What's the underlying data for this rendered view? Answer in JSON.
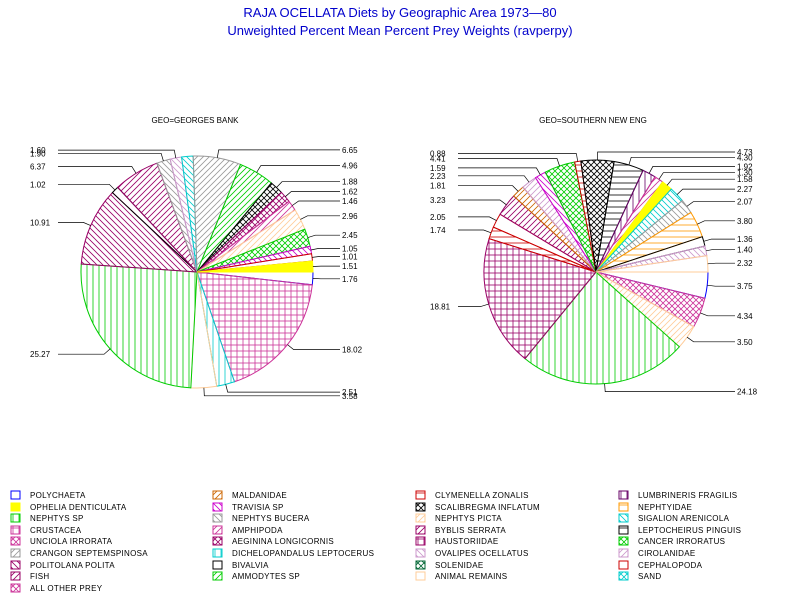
{
  "title": "RAJA OCELLATA Diets by Geographic Area 1973—80",
  "subtitle": "Unweighted Percent Mean Percent Prey  Weights (ravperpy)",
  "chart_data": {
    "type": "pie",
    "categories": [
      {
        "name": "POLYCHAETA",
        "color": "#0000ff",
        "pattern": "empty"
      },
      {
        "name": "OPHELIA DENTICULATA",
        "color": "#ffff00",
        "pattern": "solid"
      },
      {
        "name": "NEPHTYS SP",
        "color": "#00cc00",
        "pattern": "vline"
      },
      {
        "name": "CRUSTACEA",
        "color": "#cc3399",
        "pattern": "cross"
      },
      {
        "name": "UNCIOLA IRRORATA",
        "color": "#cc3399",
        "pattern": "xcross"
      },
      {
        "name": "CRANGON SEPTEMSPINOSA",
        "color": "#999999",
        "pattern": "ldiag"
      },
      {
        "name": "POLITOLANA POLITA",
        "color": "#990066",
        "pattern": "rdiag"
      },
      {
        "name": "FISH",
        "color": "#990066",
        "pattern": "ldiag"
      },
      {
        "name": "ALL OTHER PREY",
        "color": "#cc3399",
        "pattern": "xdiag"
      },
      {
        "name": "MALDANIDAE",
        "color": "#cc6600",
        "pattern": "ldiag"
      },
      {
        "name": "TRAVISIA SP",
        "color": "#cc00cc",
        "pattern": "rdiag"
      },
      {
        "name": "NEPHTYS BUCERA",
        "color": "#999999",
        "pattern": "rdiag"
      },
      {
        "name": "AMPHIPODA",
        "color": "#cc3399",
        "pattern": "ldiag"
      },
      {
        "name": "AEGININA LONGICORNIS",
        "color": "#990066",
        "pattern": "xdiag"
      },
      {
        "name": "DICHELOPANDALUS LEPTOCERUS",
        "color": "#00cccc",
        "pattern": "vline"
      },
      {
        "name": "BIVALVIA",
        "color": "#000000",
        "pattern": "empty"
      },
      {
        "name": "AMMODYTES SP",
        "color": "#00cc00",
        "pattern": "ldiag"
      },
      {
        "name": "CLYMENELLA ZONALIS",
        "color": "#cc0000",
        "pattern": "hline"
      },
      {
        "name": "SCALIBREGMA INFLATUM",
        "color": "#000000",
        "pattern": "xdiag"
      },
      {
        "name": "NEPHTYS PICTA",
        "color": "#ffcc99",
        "pattern": "ldiag"
      },
      {
        "name": "BYBLIS SERRATA",
        "color": "#990066",
        "pattern": "ldiag"
      },
      {
        "name": "HAUSTORIIDAE",
        "color": "#990066",
        "pattern": "cross"
      },
      {
        "name": "OVALIPES OCELLATUS",
        "color": "#cc99cc",
        "pattern": "rdiag"
      },
      {
        "name": "SOLENIDAE",
        "color": "#006633",
        "pattern": "xcross"
      },
      {
        "name": "ANIMAL REMAINS",
        "color": "#ffcc99",
        "pattern": "empty"
      },
      {
        "name": "LUMBRINERIS FRAGILIS",
        "color": "#660066",
        "pattern": "vline"
      },
      {
        "name": "NEPHTYIDAE",
        "color": "#ff9900",
        "pattern": "hline"
      },
      {
        "name": "SIGALION ARENICOLA",
        "color": "#00cccc",
        "pattern": "rdiag"
      },
      {
        "name": "LEPTOCHEIRUS PINGUIS",
        "color": "#000000",
        "pattern": "hline"
      },
      {
        "name": "CANCER IRRORATUS",
        "color": "#00cc00",
        "pattern": "xdiag"
      },
      {
        "name": "CIROLANIDAE",
        "color": "#cc99cc",
        "pattern": "ldiag"
      },
      {
        "name": "CEPHALOPODA",
        "color": "#cc0000",
        "pattern": "empty"
      },
      {
        "name": "SAND",
        "color": "#00cccc",
        "pattern": "xcross"
      }
    ],
    "pies": [
      {
        "title": "GEO=GEORGES BANK",
        "slices": [
          {
            "category": "POLYCHAETA",
            "value": 1.76,
            "label": "1.76"
          },
          {
            "category": "CRUSTACEA",
            "value": 18.02,
            "label": "18.02"
          },
          {
            "category": "DICHELOPANDALUS LEPTOCERUS",
            "value": 2.51,
            "label": "2.51"
          },
          {
            "category": "ANIMAL REMAINS",
            "value": 3.58,
            "label": "3.58"
          },
          {
            "category": "NEPHTYS SP",
            "value": 25.27,
            "label": "25.27"
          },
          {
            "category": "POLITOLANA POLITA",
            "value": 10.91,
            "label": "10.91"
          },
          {
            "category": "BIVALVIA",
            "value": 1.02,
            "label": "1.02"
          },
          {
            "category": "FISH",
            "value": 6.37,
            "label": "6.37"
          },
          {
            "category": "NEPHTYS BUCERA",
            "value": 1.9,
            "label": "1.90"
          },
          {
            "category": "OVALIPES OCELLATUS",
            "value": 1.6,
            "label": "1.60"
          },
          {
            "category": "SIGALION ARENICOLA",
            "value": 1.6,
            "label": ""
          },
          {
            "category": "CRANGON SEPTEMSPINOSA",
            "value": 6.65,
            "label": "6.65"
          },
          {
            "category": "AMMODYTES SP",
            "value": 4.96,
            "label": "4.96"
          },
          {
            "category": "SCALIBREGMA INFLATUM",
            "value": 1.88,
            "label": "1.88"
          },
          {
            "category": "AEGININA LONGICORNIS",
            "value": 1.62,
            "label": "1.62"
          },
          {
            "category": "AMPHIPODA",
            "value": 1.46,
            "label": "1.46"
          },
          {
            "category": "NEPHTYS PICTA",
            "value": 2.96,
            "label": "2.96"
          },
          {
            "category": "CANCER IRRORATUS",
            "value": 2.45,
            "label": "2.45"
          },
          {
            "category": "TRAVISIA SP",
            "value": 1.05,
            "label": "1.05"
          },
          {
            "category": "CEPHALOPODA",
            "value": 1.01,
            "label": "1.01"
          },
          {
            "category": "OPHELIA DENTICULATA",
            "value": 1.51,
            "label": "1.51"
          }
        ]
      },
      {
        "title": "GEO=SOUTHERN NEW ENG",
        "slices": [
          {
            "category": "POLYCHAETA",
            "value": 3.75,
            "label": "3.75"
          },
          {
            "category": "UNCIOLA IRRORATA",
            "value": 4.34,
            "label": "4.34"
          },
          {
            "category": "NEPHTYS PICTA",
            "value": 3.5,
            "label": "3.50"
          },
          {
            "category": "NEPHTYS SP",
            "value": 24.18,
            "label": "24.18"
          },
          {
            "category": "HAUSTORIIDAE",
            "value": 18.81,
            "label": "18.81"
          },
          {
            "category": "CLYMENELLA ZONALIS",
            "value": 1.74,
            "label": "1.74"
          },
          {
            "category": "CEPHALOPODA",
            "value": 2.05,
            "label": "2.05"
          },
          {
            "category": "BYBLIS SERRATA",
            "value": 3.23,
            "label": "3.23"
          },
          {
            "category": "MALDANIDAE",
            "value": 1.81,
            "label": "1.81"
          },
          {
            "category": "CIROLANIDAE",
            "value": 2.23,
            "label": "2.23"
          },
          {
            "category": "TRAVISIA SP",
            "value": 1.59,
            "label": "1.59"
          },
          {
            "category": "CANCER IRRORATUS",
            "value": 4.41,
            "label": "4.41"
          },
          {
            "category": "CLYMENELLA ZONALIS",
            "value": 0.88,
            "label": "0.88"
          },
          {
            "category": "SCALIBREGMA INFLATUM",
            "value": 4.73,
            "label": "4.73"
          },
          {
            "category": "LEPTOCHEIRUS PINGUIS",
            "value": 4.3,
            "label": "4.30"
          },
          {
            "category": "LUMBRINERIS FRAGILIS",
            "value": 1.92,
            "label": "1.92"
          },
          {
            "category": "AMPHIPODA",
            "value": 1.3,
            "label": "1.30"
          },
          {
            "category": "OPHELIA DENTICULATA",
            "value": 1.58,
            "label": "1.58"
          },
          {
            "category": "SIGALION ARENICOLA",
            "value": 2.27,
            "label": "2.27"
          },
          {
            "category": "NEPHTYS BUCERA",
            "value": 2.07,
            "label": "2.07"
          },
          {
            "category": "NEPHTYIDAE",
            "value": 3.8,
            "label": "3.80"
          },
          {
            "category": "BIVALVIA",
            "value": 1.36,
            "label": "1.36"
          },
          {
            "category": "OVALIPES OCELLATUS",
            "value": 1.4,
            "label": "1.40"
          },
          {
            "category": "ANIMAL REMAINS",
            "value": 2.32,
            "label": "2.32"
          }
        ]
      }
    ],
    "legend_placement": "bottom"
  }
}
